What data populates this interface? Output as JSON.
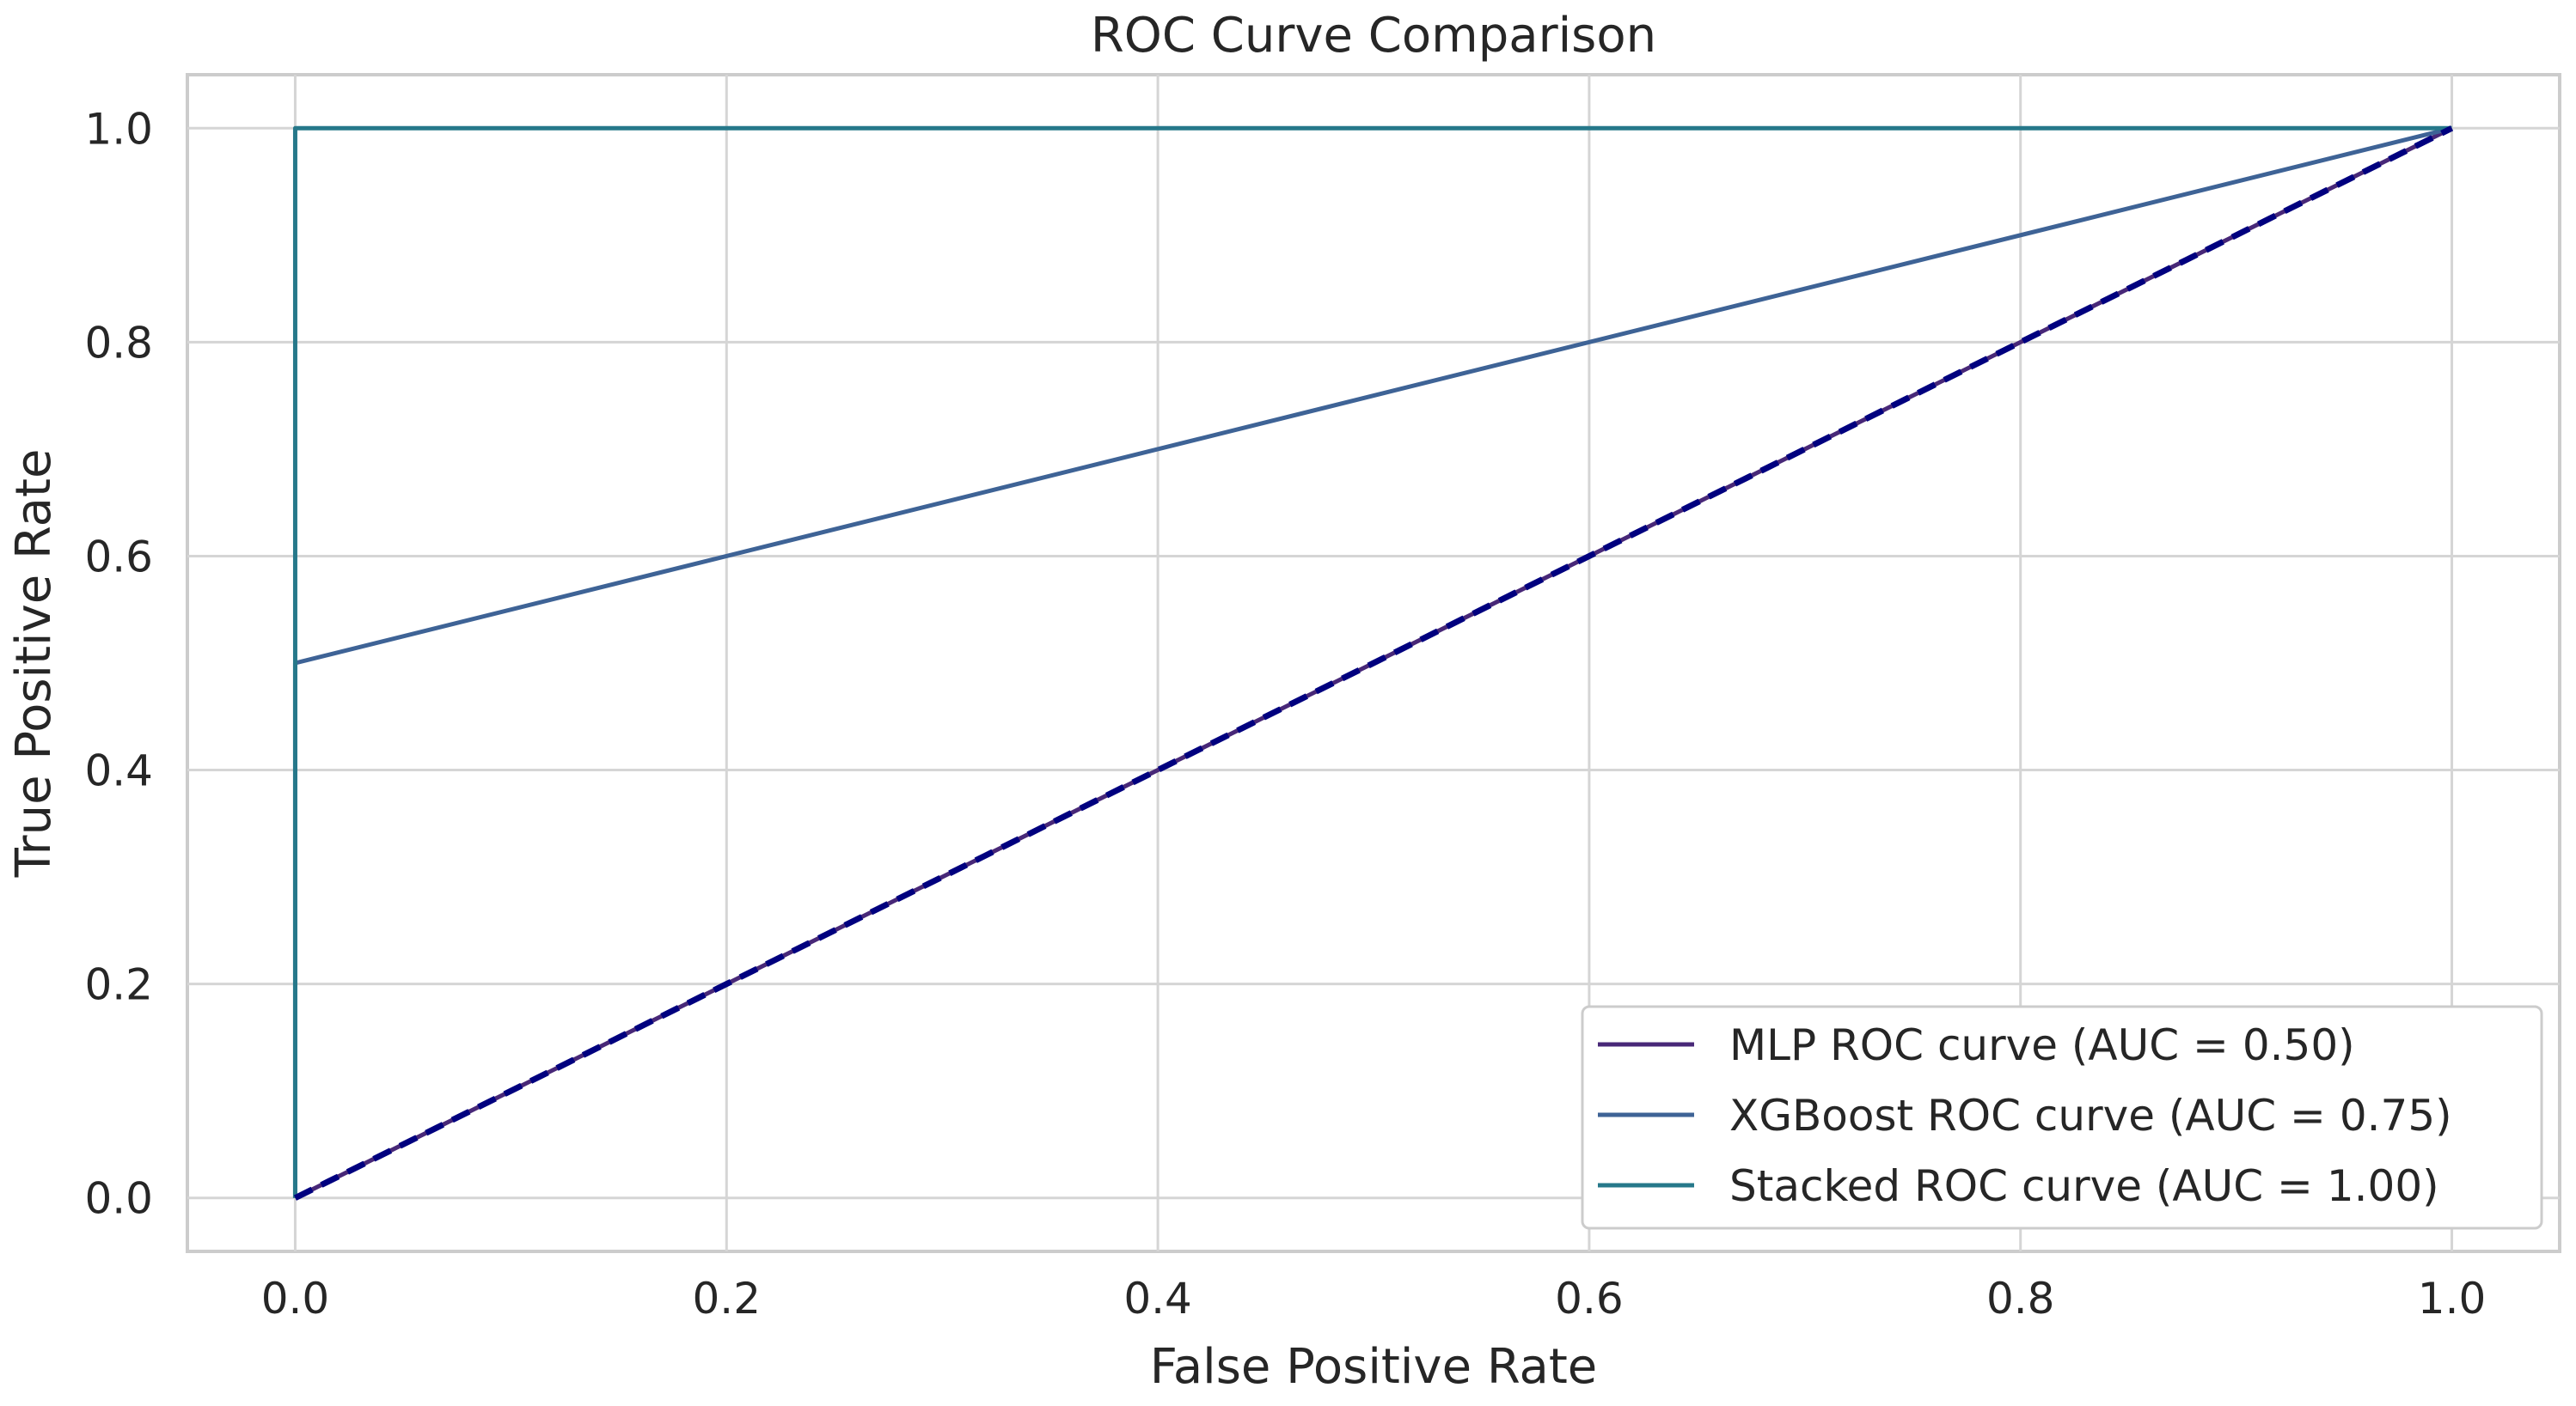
{
  "chart_data": {
    "type": "line",
    "title": "ROC Curve Comparison",
    "xlabel": "False Positive Rate",
    "ylabel": "True Positive Rate",
    "xlim": [
      -0.05,
      1.05
    ],
    "ylim": [
      -0.05,
      1.05
    ],
    "xticks": [
      0.0,
      0.2,
      0.4,
      0.6,
      0.8,
      1.0
    ],
    "yticks": [
      0.0,
      0.2,
      0.4,
      0.6,
      0.8,
      1.0
    ],
    "xtick_labels": [
      "0.0",
      "0.2",
      "0.4",
      "0.6",
      "0.8",
      "1.0"
    ],
    "ytick_labels": [
      "0.0",
      "0.2",
      "0.4",
      "0.6",
      "0.8",
      "1.0"
    ],
    "grid": true,
    "legend_position": "lower-right",
    "series": [
      {
        "name": "MLP ROC curve (AUC = 0.50)",
        "color": "#482878",
        "x": [
          0.0,
          1.0
        ],
        "y": [
          0.0,
          1.0
        ]
      },
      {
        "name": "XGBoost ROC curve (AUC = 0.75)",
        "color": "#3e6396",
        "x": [
          0.0,
          0.0,
          1.0
        ],
        "y": [
          0.0,
          0.5,
          1.0
        ]
      },
      {
        "name": "Stacked ROC curve (AUC = 1.00)",
        "color": "#26788a",
        "x": [
          0.0,
          0.0,
          1.0
        ],
        "y": [
          0.0,
          1.0,
          1.0
        ]
      }
    ],
    "reference_line": {
      "x": [
        0.0,
        1.0
      ],
      "y": [
        0.0,
        1.0
      ],
      "color": "#00007f",
      "style": "dashed"
    }
  }
}
